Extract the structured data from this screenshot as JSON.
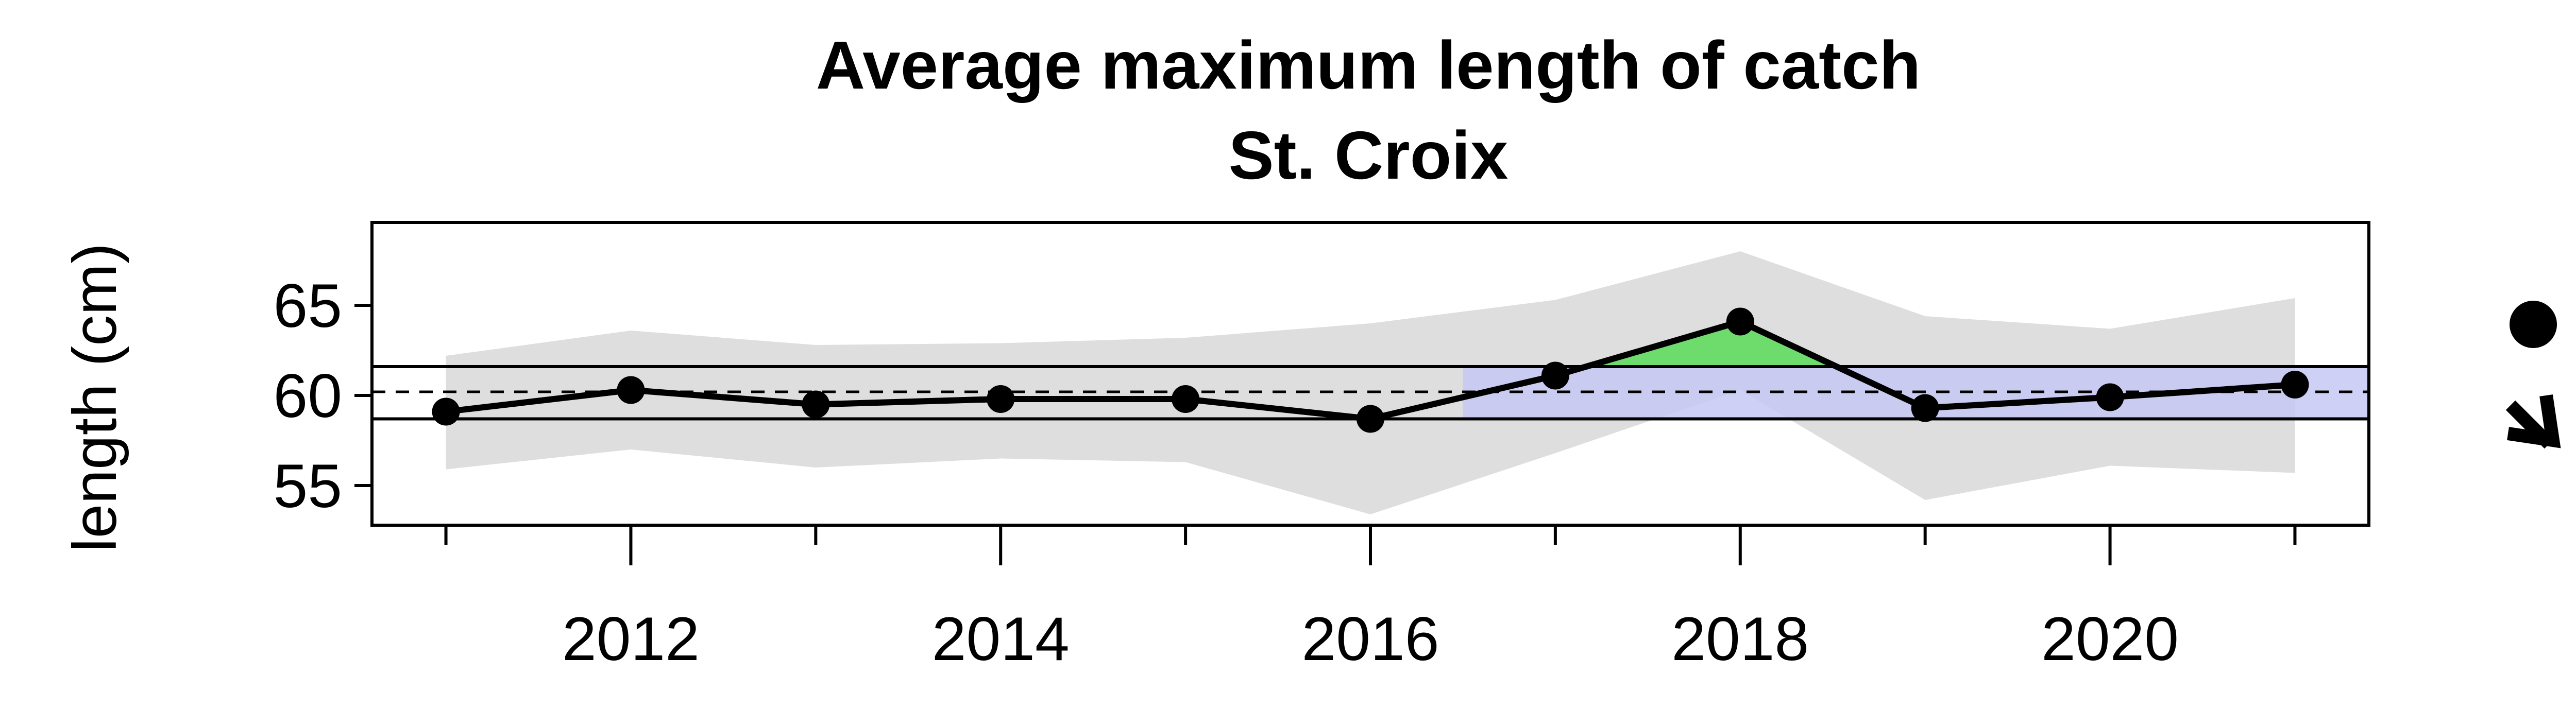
{
  "chart_data": {
    "type": "line",
    "title": "Average maximum length of catch",
    "subtitle": "St. Croix",
    "xlabel": "",
    "ylabel": "length (cm)",
    "x": [
      2011,
      2012,
      2013,
      2014,
      2015,
      2016,
      2017,
      2018,
      2019,
      2020,
      2021
    ],
    "values": [
      59.1,
      60.3,
      59.5,
      59.8,
      59.8,
      58.7,
      61.1,
      64.1,
      59.3,
      59.9,
      60.6
    ],
    "band_upper": [
      62.2,
      63.6,
      62.8,
      62.9,
      63.2,
      64.0,
      65.3,
      68.0,
      64.4,
      63.7,
      65.4
    ],
    "band_lower": [
      55.9,
      57.0,
      56.0,
      56.5,
      56.3,
      53.4,
      56.8,
      60.3,
      54.2,
      56.1,
      55.7
    ],
    "mean": 60.2,
    "sd_upper": 61.6,
    "sd_lower": 58.7,
    "recent_window_start": 2016.5,
    "x_ticks": [
      2012,
      2014,
      2016,
      2018,
      2020
    ],
    "x_minor_ticks": [
      2011,
      2012,
      2013,
      2014,
      2015,
      2016,
      2017,
      2018,
      2019,
      2020,
      2021
    ],
    "y_ticks": [
      55,
      60,
      65
    ],
    "xlim": [
      2010.6,
      2021.4
    ],
    "ylim": [
      52.8,
      69.6
    ],
    "grid": false,
    "legend": "none",
    "trend_indicators": {
      "mean_symbol": "filled-circle",
      "trend_symbol": "arrow-down-right"
    },
    "colors": {
      "band": "#dedede",
      "recent_window": "#c5c8f4",
      "above_fill": "#6ddc6d",
      "line": "#000000"
    }
  }
}
